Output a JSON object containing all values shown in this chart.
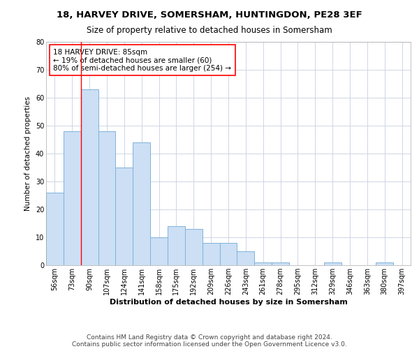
{
  "title": "18, HARVEY DRIVE, SOMERSHAM, HUNTINGDON, PE28 3EF",
  "subtitle": "Size of property relative to detached houses in Somersham",
  "xlabel": "Distribution of detached houses by size in Somersham",
  "ylabel": "Number of detached properties",
  "categories": [
    "56sqm",
    "73sqm",
    "90sqm",
    "107sqm",
    "124sqm",
    "141sqm",
    "158sqm",
    "175sqm",
    "192sqm",
    "209sqm",
    "226sqm",
    "243sqm",
    "261sqm",
    "278sqm",
    "295sqm",
    "312sqm",
    "329sqm",
    "346sqm",
    "363sqm",
    "380sqm",
    "397sqm"
  ],
  "values": [
    26,
    48,
    63,
    48,
    35,
    44,
    10,
    14,
    13,
    8,
    8,
    5,
    1,
    1,
    0,
    0,
    1,
    0,
    0,
    1,
    0
  ],
  "bar_color": "#ccdff5",
  "bar_edge_color": "#7fb3d9",
  "annotation_text": "18 HARVEY DRIVE: 85sqm\n← 19% of detached houses are smaller (60)\n80% of semi-detached houses are larger (254) →",
  "annotation_box_color": "white",
  "annotation_box_edgecolor": "red",
  "vline_color": "red",
  "vline_x": 2.0,
  "ylim": [
    0,
    80
  ],
  "yticks": [
    0,
    10,
    20,
    30,
    40,
    50,
    60,
    70,
    80
  ],
  "background_color": "white",
  "grid_color": "#c8d0e0",
  "footer_line1": "Contains HM Land Registry data © Crown copyright and database right 2024.",
  "footer_line2": "Contains public sector information licensed under the Open Government Licence v3.0.",
  "title_fontsize": 9.5,
  "subtitle_fontsize": 8.5,
  "xlabel_fontsize": 8,
  "ylabel_fontsize": 7.5,
  "tick_fontsize": 7,
  "annotation_fontsize": 7.5,
  "footer_fontsize": 6.5
}
